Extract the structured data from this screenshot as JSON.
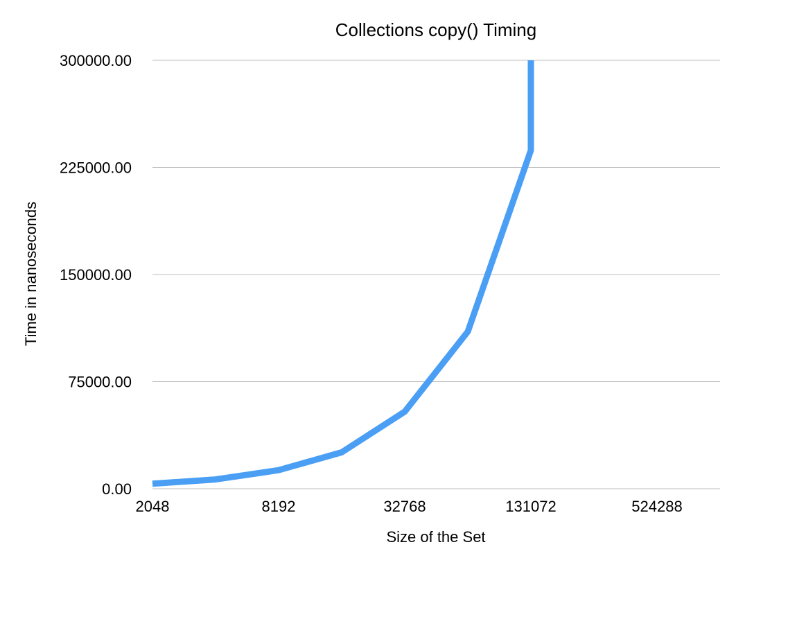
{
  "chart_data": {
    "type": "line",
    "title": "Collections copy() Timing",
    "xlabel": "Size of the Set",
    "ylabel": "Time in nanoseconds",
    "x_scale": "log2",
    "x": [
      2048,
      4096,
      8192,
      16384,
      32768,
      65536,
      131072,
      131072
    ],
    "x_ticks": [
      2048,
      8192,
      32768,
      131072,
      524288
    ],
    "x_tick_labels": [
      "2048",
      "8192",
      "32768",
      "131072",
      "524288"
    ],
    "xlim": [
      2048,
      1048576
    ],
    "ylim": [
      0,
      300000
    ],
    "y_ticks": [
      0,
      75000,
      150000,
      225000,
      300000
    ],
    "y_tick_labels": [
      "0.00",
      "75000.00",
      "150000.00",
      "225000.00",
      "300000.00"
    ],
    "grid": true,
    "legend": "none",
    "series": [
      {
        "values": [
          3500,
          6500,
          13000,
          25500,
          54000,
          110000,
          237000,
          300000
        ],
        "color": "#4a9ff5"
      }
    ]
  }
}
